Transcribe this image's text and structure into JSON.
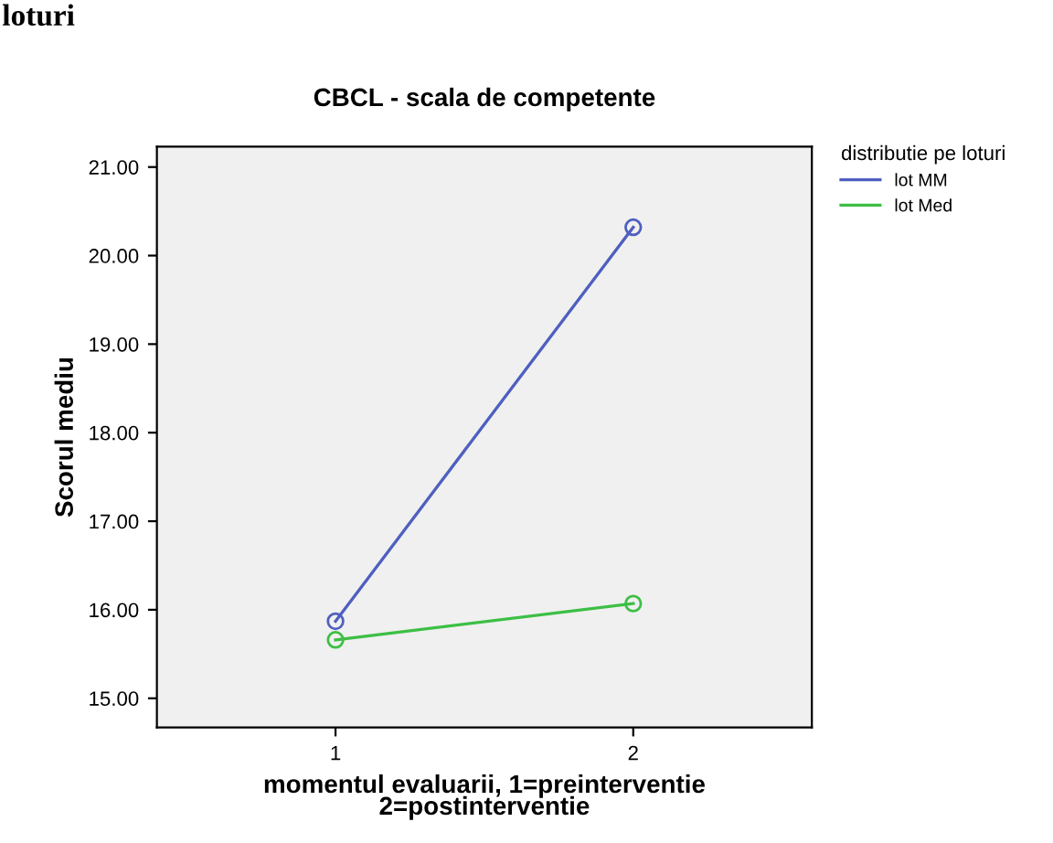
{
  "chart_data": {
    "type": "line",
    "title": "CBCL - scala de competente",
    "xlabel": "momentul evaluarii, 1=preinterventie\n2=postinterventie",
    "ylabel": "Scorul mediu",
    "legend_title": "distributie pe loturi",
    "annotations": [
      "loturi"
    ],
    "x": [
      1,
      2
    ],
    "series": [
      {
        "name": "lot MM",
        "color": "#4e5fbf",
        "values": [
          15.87,
          20.32
        ]
      },
      {
        "name": "lot Med",
        "color": "#3dbf45",
        "values": [
          15.66,
          16.07
        ]
      }
    ],
    "xlim": [
      0.4,
      2.6
    ],
    "xticks": [
      1,
      2
    ],
    "ylim": [
      14.67,
      21.23
    ],
    "yticks": [
      {
        "value": 15,
        "label": "15.00"
      },
      {
        "value": 16,
        "label": "16.00"
      },
      {
        "value": 17,
        "label": "17.00"
      },
      {
        "value": 18,
        "label": "18.00"
      },
      {
        "value": 19,
        "label": "19.00"
      },
      {
        "value": 20,
        "label": "20.00"
      },
      {
        "value": 21,
        "label": "21.00"
      }
    ],
    "marker": "circle",
    "line_style": "solid",
    "legend": "right",
    "grid": false
  }
}
